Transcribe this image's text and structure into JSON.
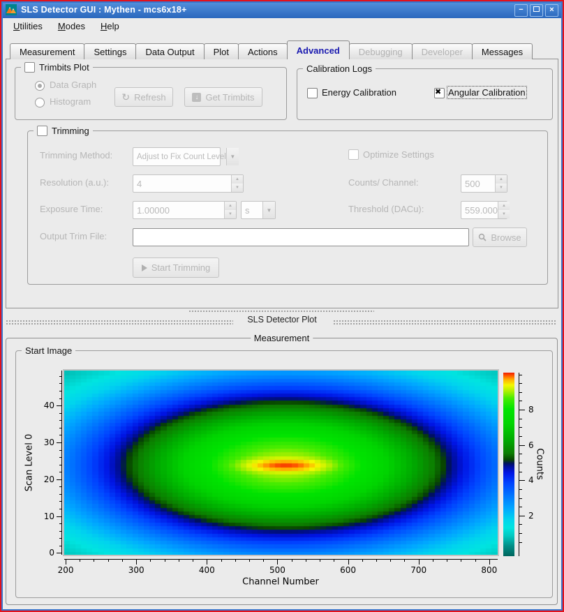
{
  "window": {
    "title": "SLS Detector GUI : Mythen - mcs6x18+",
    "controls": {
      "minimize": "−",
      "maximize": "",
      "close": "×"
    }
  },
  "menubar": {
    "items": [
      {
        "label": "Utilities"
      },
      {
        "label": "Modes"
      },
      {
        "label": "Help"
      }
    ]
  },
  "tabs": {
    "items": [
      {
        "label": "Measurement",
        "state": "normal"
      },
      {
        "label": "Settings",
        "state": "normal"
      },
      {
        "label": "Data Output",
        "state": "normal"
      },
      {
        "label": "Plot",
        "state": "normal"
      },
      {
        "label": "Actions",
        "state": "normal"
      },
      {
        "label": "Advanced",
        "state": "selected"
      },
      {
        "label": "Debugging",
        "state": "disabled"
      },
      {
        "label": "Developer",
        "state": "disabled"
      },
      {
        "label": "Messages",
        "state": "normal"
      }
    ]
  },
  "trimbits_plot": {
    "title": "Trimbits Plot",
    "checkbox_checked": false,
    "radio_data_graph": "Data Graph",
    "radio_histogram": "Histogram",
    "refresh_button": "Refresh",
    "refresh_icon": "↻",
    "get_trimbits_button": "Get Trimbits",
    "get_trimbits_icon": "↓"
  },
  "calibration_logs": {
    "title": "Calibration Logs",
    "energy_label": "Energy Calibration",
    "energy_checked": false,
    "angular_label": "Angular Calibration",
    "angular_checked": true
  },
  "trimming": {
    "title": "Trimming",
    "checkbox_checked": false,
    "method_label": "Trimming Method:",
    "method_value": "Adjust to Fix Count Level",
    "optimize_label": "Optimize Settings",
    "optimize_checked": false,
    "resolution_label": "Resolution (a.u.):",
    "resolution_value": "4",
    "counts_label": "Counts/ Channel:",
    "counts_value": "500",
    "exposure_label": "Exposure Time:",
    "exposure_value": "1.00000",
    "exposure_unit": "s",
    "threshold_label": "Threshold (DACu):",
    "threshold_value": "559.000",
    "output_label": "Output Trim File:",
    "output_value": "",
    "browse_button": "Browse",
    "start_button": "Start Trimming"
  },
  "dock": {
    "title": "SLS Detector Plot"
  },
  "measurement": {
    "title": "Measurement",
    "start_image_title": "Start Image"
  },
  "chart_data": {
    "type": "heatmap",
    "title": "Start Image",
    "xlabel": "Channel Number",
    "ylabel": "Scan Level 0",
    "colorbar_label": "Counts",
    "x_range": [
      198,
      812
    ],
    "y_range": [
      -0.5,
      49.5
    ],
    "x_major_ticks": [
      200,
      300,
      400,
      500,
      600,
      700,
      800
    ],
    "x_minor_step": 20,
    "y_major_ticks": [
      0,
      10,
      20,
      30,
      40
    ],
    "y_minor_step": 2,
    "z_axis_range": [
      -0.3,
      10.1
    ],
    "z_major_ticks": [
      2,
      4,
      6,
      8
    ],
    "z_minor_step": 0.5,
    "grid": {
      "cols": 76,
      "rows": 50
    },
    "model": {
      "kind": "sum-of-gaussians",
      "description": "counts(x,y) = sum of elliptical gaussians; broad background plus sharp central peak at channel 512, scan level 24, peak ~10 counts",
      "components": [
        {
          "amplitude": 9.2,
          "center_x": 512,
          "center_y": 24,
          "sigma_x": 215,
          "sigma_y": 16.5
        },
        {
          "amplitude": 0.9,
          "center_x": 512,
          "center_y": 24,
          "sigma_x": 45,
          "sigma_y": 1.2
        }
      ]
    },
    "z_color_range": [
      0,
      10.2
    ],
    "grid_lines": false,
    "colormap": [
      [
        0.0,
        "#00655d"
      ],
      [
        0.055,
        "#008e86"
      ],
      [
        0.11,
        "#00c8c0"
      ],
      [
        0.155,
        "#00e4e0"
      ],
      [
        0.2,
        "#00d4ee"
      ],
      [
        0.26,
        "#00a8ff"
      ],
      [
        0.33,
        "#0076ff"
      ],
      [
        0.4,
        "#0042ff"
      ],
      [
        0.455,
        "#0014e4"
      ],
      [
        0.49,
        "#000e96"
      ],
      [
        0.505,
        "#001060"
      ],
      [
        0.525,
        "#084400"
      ],
      [
        0.56,
        "#0c7c00"
      ],
      [
        0.63,
        "#00a800"
      ],
      [
        0.72,
        "#00d400"
      ],
      [
        0.8,
        "#00e400"
      ],
      [
        0.86,
        "#46ec00"
      ],
      [
        0.9,
        "#b0f000"
      ],
      [
        0.932,
        "#f4f800"
      ],
      [
        0.962,
        "#ffb000"
      ],
      [
        0.982,
        "#ff6000"
      ],
      [
        1.0,
        "#f01c00"
      ]
    ]
  }
}
